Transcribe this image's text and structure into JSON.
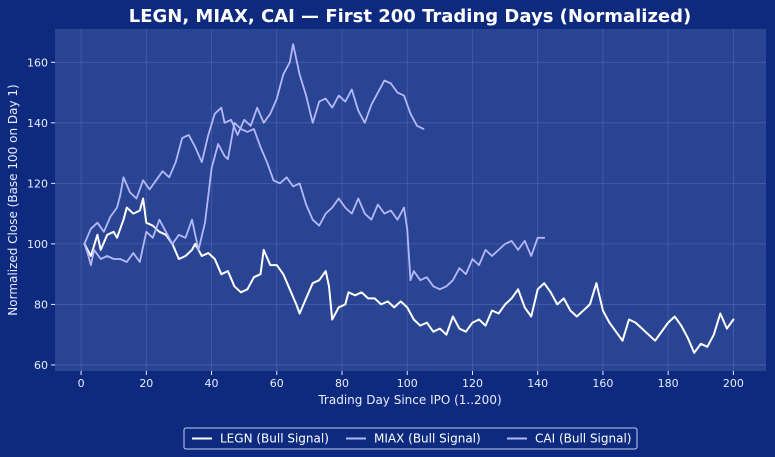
{
  "chart_data": {
    "type": "line",
    "title": "LEGN, MIAX, CAI — First 200 Trading Days (Normalized)",
    "xlabel": "Trading Day Since IPO (1..200)",
    "ylabel": "Normalized Close (Base 100 on Day 1)",
    "xlim": [
      -8,
      210
    ],
    "ylim": [
      58,
      171
    ],
    "xticks": [
      0,
      20,
      40,
      60,
      80,
      100,
      120,
      140,
      160,
      180,
      200
    ],
    "yticks": [
      60,
      80,
      100,
      120,
      140,
      160
    ],
    "grid": true,
    "legend_position": "bottom-center",
    "colors": {
      "background": "#0d2a7f",
      "plot_area": "#2a4494",
      "grid": "#5a70b4",
      "text": "#e8ecff"
    },
    "series": [
      {
        "name": "LEGN (Bull Signal)",
        "color": "#ffffff",
        "points": [
          [
            1,
            100
          ],
          [
            3,
            96
          ],
          [
            5,
            103
          ],
          [
            6,
            98
          ],
          [
            8,
            103
          ],
          [
            10,
            104
          ],
          [
            11,
            102
          ],
          [
            13,
            108
          ],
          [
            14,
            112
          ],
          [
            16,
            110
          ],
          [
            18,
            111
          ],
          [
            19,
            115
          ],
          [
            20,
            107
          ],
          [
            22,
            106
          ],
          [
            24,
            104
          ],
          [
            26,
            103
          ],
          [
            28,
            100
          ],
          [
            30,
            95
          ],
          [
            32,
            96
          ],
          [
            34,
            98
          ],
          [
            35,
            100
          ],
          [
            37,
            96
          ],
          [
            39,
            97
          ],
          [
            41,
            95
          ],
          [
            43,
            90
          ],
          [
            45,
            91
          ],
          [
            47,
            86
          ],
          [
            49,
            84
          ],
          [
            51,
            85
          ],
          [
            53,
            89
          ],
          [
            55,
            90
          ],
          [
            56,
            98
          ],
          [
            58,
            93
          ],
          [
            60,
            93
          ],
          [
            62,
            90
          ],
          [
            64,
            85
          ],
          [
            66,
            80
          ],
          [
            67,
            77
          ],
          [
            69,
            82
          ],
          [
            71,
            87
          ],
          [
            73,
            88
          ],
          [
            75,
            91
          ],
          [
            76,
            86
          ],
          [
            77,
            75
          ],
          [
            79,
            79
          ],
          [
            81,
            80
          ],
          [
            82,
            84
          ],
          [
            84,
            83
          ],
          [
            86,
            84
          ],
          [
            88,
            82
          ],
          [
            90,
            82
          ],
          [
            92,
            80
          ],
          [
            94,
            81
          ],
          [
            96,
            79
          ],
          [
            98,
            81
          ],
          [
            100,
            79
          ],
          [
            102,
            75
          ],
          [
            104,
            73
          ],
          [
            106,
            74
          ],
          [
            108,
            71
          ],
          [
            110,
            72
          ],
          [
            112,
            70
          ],
          [
            114,
            76
          ],
          [
            116,
            72
          ],
          [
            118,
            71
          ],
          [
            120,
            74
          ],
          [
            122,
            75
          ],
          [
            124,
            73
          ],
          [
            126,
            78
          ],
          [
            128,
            77
          ],
          [
            130,
            80
          ],
          [
            132,
            82
          ],
          [
            134,
            85
          ],
          [
            136,
            79
          ],
          [
            138,
            76
          ],
          [
            140,
            85
          ],
          [
            142,
            87
          ],
          [
            144,
            84
          ],
          [
            146,
            80
          ],
          [
            148,
            82
          ],
          [
            150,
            78
          ],
          [
            152,
            76
          ],
          [
            154,
            78
          ],
          [
            156,
            80
          ],
          [
            158,
            87
          ],
          [
            160,
            78
          ],
          [
            162,
            74
          ],
          [
            164,
            71
          ],
          [
            166,
            68
          ],
          [
            168,
            75
          ],
          [
            170,
            74
          ],
          [
            172,
            72
          ],
          [
            174,
            70
          ],
          [
            176,
            68
          ],
          [
            178,
            71
          ],
          [
            180,
            74
          ],
          [
            182,
            76
          ],
          [
            184,
            73
          ],
          [
            186,
            69
          ],
          [
            188,
            64
          ],
          [
            190,
            67
          ],
          [
            192,
            66
          ],
          [
            194,
            70
          ],
          [
            196,
            77
          ],
          [
            198,
            72
          ],
          [
            200,
            75
          ]
        ]
      },
      {
        "name": "MIAX (Bull Signal)",
        "color": "#b4b8f8",
        "points": [
          [
            1,
            100
          ],
          [
            2,
            97
          ],
          [
            3,
            93
          ],
          [
            4,
            98
          ],
          [
            6,
            95
          ],
          [
            8,
            96
          ],
          [
            10,
            95
          ],
          [
            12,
            95
          ],
          [
            14,
            94
          ],
          [
            16,
            97
          ],
          [
            18,
            94
          ],
          [
            20,
            104
          ],
          [
            22,
            102
          ],
          [
            24,
            108
          ],
          [
            26,
            104
          ],
          [
            28,
            100
          ],
          [
            30,
            103
          ],
          [
            32,
            102
          ],
          [
            34,
            108
          ],
          [
            36,
            98
          ],
          [
            38,
            107
          ],
          [
            40,
            125
          ],
          [
            42,
            133
          ],
          [
            44,
            129
          ],
          [
            45,
            128
          ],
          [
            47,
            140
          ],
          [
            49,
            138
          ],
          [
            51,
            137
          ],
          [
            53,
            138
          ],
          [
            55,
            132
          ],
          [
            57,
            127
          ],
          [
            59,
            121
          ],
          [
            61,
            120
          ],
          [
            63,
            122
          ],
          [
            65,
            119
          ],
          [
            67,
            120
          ],
          [
            69,
            113
          ],
          [
            71,
            108
          ],
          [
            73,
            106
          ],
          [
            75,
            110
          ],
          [
            77,
            112
          ],
          [
            79,
            115
          ],
          [
            81,
            112
          ],
          [
            83,
            110
          ],
          [
            85,
            115
          ],
          [
            87,
            110
          ],
          [
            89,
            108
          ],
          [
            91,
            113
          ],
          [
            93,
            110
          ],
          [
            95,
            111
          ],
          [
            97,
            108
          ],
          [
            99,
            112
          ],
          [
            100,
            105
          ],
          [
            101,
            88
          ],
          [
            102,
            91
          ],
          [
            104,
            88
          ],
          [
            106,
            89
          ],
          [
            108,
            86
          ],
          [
            110,
            85
          ],
          [
            112,
            86
          ],
          [
            114,
            88
          ],
          [
            116,
            92
          ],
          [
            118,
            90
          ],
          [
            120,
            95
          ],
          [
            122,
            93
          ],
          [
            124,
            98
          ],
          [
            126,
            96
          ],
          [
            128,
            98
          ],
          [
            130,
            100
          ],
          [
            132,
            101
          ],
          [
            134,
            98
          ],
          [
            136,
            101
          ],
          [
            138,
            96
          ],
          [
            140,
            102
          ],
          [
            142,
            102
          ]
        ]
      },
      {
        "name": "CAI (Bull Signal)",
        "color": "#b4b8f8",
        "points": [
          [
            1,
            100
          ],
          [
            3,
            105
          ],
          [
            5,
            107
          ],
          [
            7,
            104
          ],
          [
            9,
            109
          ],
          [
            11,
            112
          ],
          [
            12,
            116
          ],
          [
            13,
            122
          ],
          [
            15,
            117
          ],
          [
            17,
            115
          ],
          [
            19,
            121
          ],
          [
            21,
            118
          ],
          [
            23,
            121
          ],
          [
            25,
            124
          ],
          [
            27,
            122
          ],
          [
            29,
            127
          ],
          [
            31,
            135
          ],
          [
            33,
            136
          ],
          [
            35,
            132
          ],
          [
            37,
            127
          ],
          [
            39,
            136
          ],
          [
            41,
            143
          ],
          [
            43,
            145
          ],
          [
            44,
            140
          ],
          [
            46,
            141
          ],
          [
            48,
            136
          ],
          [
            50,
            141
          ],
          [
            52,
            139
          ],
          [
            54,
            145
          ],
          [
            56,
            140
          ],
          [
            58,
            143
          ],
          [
            60,
            148
          ],
          [
            62,
            156
          ],
          [
            64,
            160
          ],
          [
            65,
            166
          ],
          [
            67,
            156
          ],
          [
            69,
            149
          ],
          [
            71,
            140
          ],
          [
            73,
            147
          ],
          [
            75,
            148
          ],
          [
            77,
            145
          ],
          [
            79,
            149
          ],
          [
            81,
            147
          ],
          [
            83,
            151
          ],
          [
            85,
            144
          ],
          [
            87,
            140
          ],
          [
            89,
            146
          ],
          [
            91,
            150
          ],
          [
            93,
            154
          ],
          [
            95,
            153
          ],
          [
            97,
            150
          ],
          [
            99,
            149
          ],
          [
            101,
            143
          ],
          [
            103,
            139
          ],
          [
            105,
            138
          ]
        ]
      }
    ]
  }
}
